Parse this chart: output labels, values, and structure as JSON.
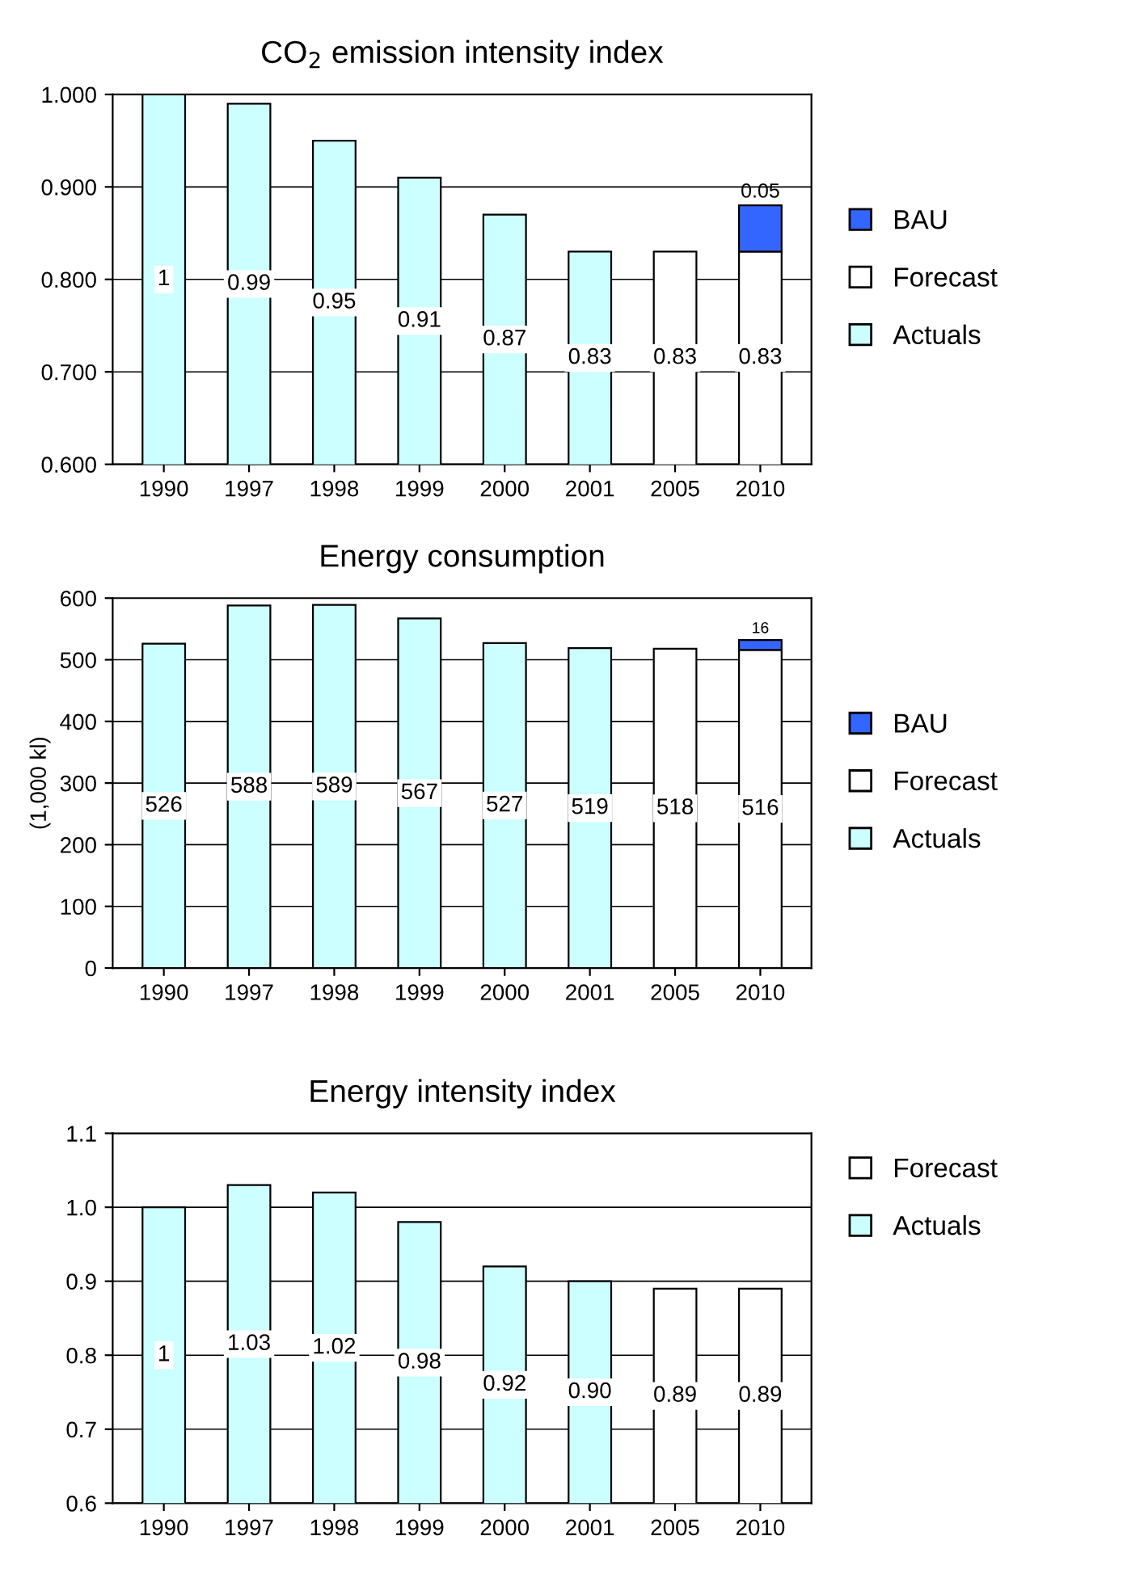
{
  "chart_data": [
    {
      "type": "bar",
      "title": "CO$_{2}$ emission intensity index",
      "categories": [
        "1990",
        "1997",
        "1998",
        "1999",
        "2000",
        "2001",
        "2005",
        "2010"
      ],
      "series": [
        {
          "name": "Actuals",
          "color": "#ccffff",
          "values": [
            1,
            0.99,
            0.95,
            0.91,
            0.87,
            0.83,
            null,
            null
          ],
          "value_labels": [
            "1",
            "0.99",
            "0.95",
            "0.91",
            "0.87",
            "0.83",
            null,
            null
          ]
        },
        {
          "name": "Forecast",
          "color": "#ffffff",
          "values": [
            null,
            null,
            null,
            null,
            null,
            null,
            0.83,
            0.83
          ],
          "value_labels": [
            null,
            null,
            null,
            null,
            null,
            null,
            "0.83",
            "0.83"
          ]
        },
        {
          "name": "BAU",
          "color": "#3366ff",
          "base": [
            null,
            null,
            null,
            null,
            null,
            null,
            null,
            0.83
          ],
          "values": [
            null,
            null,
            null,
            null,
            null,
            null,
            null,
            0.05
          ],
          "value_labels": [
            null,
            null,
            null,
            null,
            null,
            null,
            null,
            "0.05"
          ]
        }
      ],
      "ylim": [
        0.6,
        1.0
      ],
      "yticks": [
        {
          "value": 0.6,
          "label": "0.600"
        },
        {
          "value": 0.7,
          "label": "0.700"
        },
        {
          "value": 0.8,
          "label": "0.800"
        },
        {
          "value": 0.9,
          "label": "0.900"
        },
        {
          "value": 1.0,
          "label": "1.000"
        }
      ],
      "grid": "y",
      "legend": "right"
    },
    {
      "type": "bar",
      "title": "Energy consumption",
      "ylabel": "(1,000 kl)",
      "categories": [
        "1990",
        "1997",
        "1998",
        "1999",
        "2000",
        "2001",
        "2005",
        "2010"
      ],
      "stacked": true,
      "series": [
        {
          "name": "Actuals",
          "color": "#ccffff",
          "values": [
            526,
            588,
            589,
            567,
            527,
            519,
            null,
            null
          ],
          "value_labels": [
            "526",
            "588",
            "589",
            "567",
            "527",
            "519",
            null,
            null
          ]
        },
        {
          "name": "Forecast",
          "color": "#ffffff",
          "values": [
            null,
            null,
            null,
            null,
            null,
            null,
            518,
            516
          ],
          "value_labels": [
            null,
            null,
            null,
            null,
            null,
            null,
            "518",
            "516"
          ]
        },
        {
          "name": "BAU",
          "color": "#3366ff",
          "values": [
            null,
            null,
            null,
            null,
            null,
            null,
            null,
            16
          ],
          "value_labels": [
            null,
            null,
            null,
            null,
            null,
            null,
            null,
            "16"
          ]
        }
      ],
      "ylim": [
        0,
        600
      ],
      "yticks": [
        0,
        100,
        200,
        300,
        400,
        500,
        600
      ],
      "grid": "y",
      "legend": "right"
    },
    {
      "type": "bar",
      "title": "Energy intensity index",
      "categories": [
        "1990",
        "1997",
        "1998",
        "1999",
        "2000",
        "2001",
        "2005",
        "2010"
      ],
      "stacked": true,
      "series": [
        {
          "name": "Actuals",
          "color": "#ccffff",
          "values": [
            1,
            1.03,
            1.02,
            0.98,
            0.92,
            0.9,
            null,
            null
          ],
          "value_labels": [
            "1",
            "1.03",
            "1.02",
            "0.98",
            "0.92",
            "0.90",
            null,
            null
          ]
        },
        {
          "name": "Forecast",
          "color": "#ffffff",
          "values": [
            null,
            null,
            null,
            null,
            null,
            null,
            0.89,
            0.89
          ],
          "value_labels": [
            null,
            null,
            null,
            null,
            null,
            null,
            "0.89",
            "0.89"
          ]
        }
      ],
      "ylim": [
        0.6,
        1.1
      ],
      "yticks": [
        0.6,
        0.7,
        0.8,
        0.9,
        {
          "value": 1.0,
          "label": "1.0"
        },
        1.1
      ],
      "grid": "y",
      "legend": "top right"
    }
  ]
}
